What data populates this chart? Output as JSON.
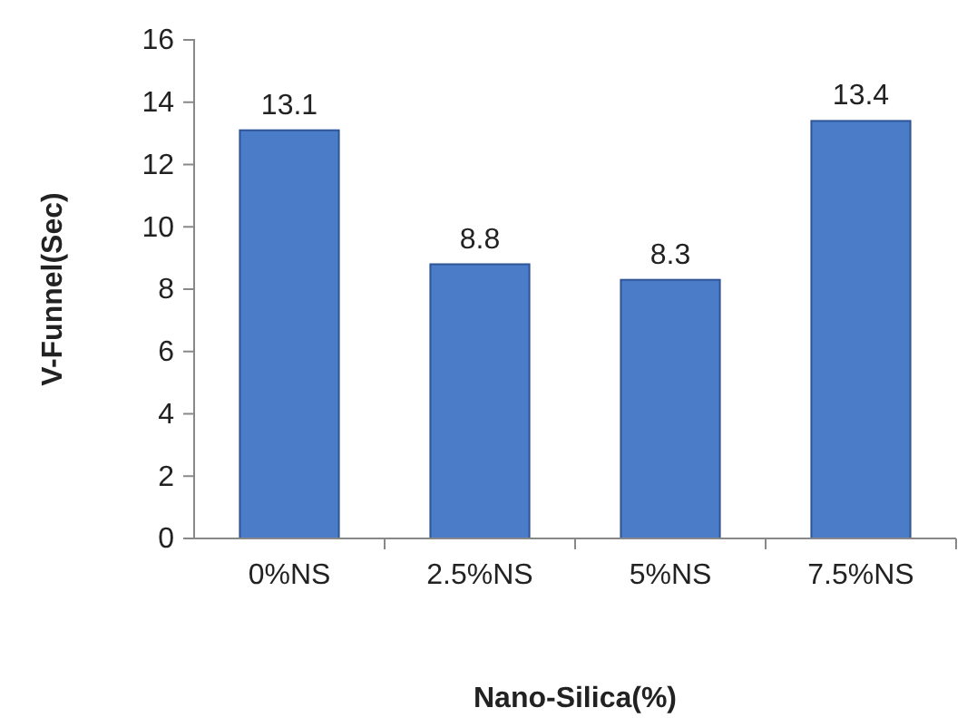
{
  "chart_data": {
    "type": "bar",
    "xlabel": "Nano-Silica(%)",
    "ylabel": "V-Funnel(Sec)",
    "categories": [
      "0%NS",
      "2.5%NS",
      "5%NS",
      "7.5%NS"
    ],
    "values": [
      13.1,
      8.8,
      8.3,
      13.4
    ],
    "color": "#4a7cc7",
    "ylim": [
      0,
      16
    ],
    "yticks": [
      0,
      2,
      4,
      6,
      8,
      10,
      12,
      14,
      16
    ],
    "data_labels": true
  }
}
